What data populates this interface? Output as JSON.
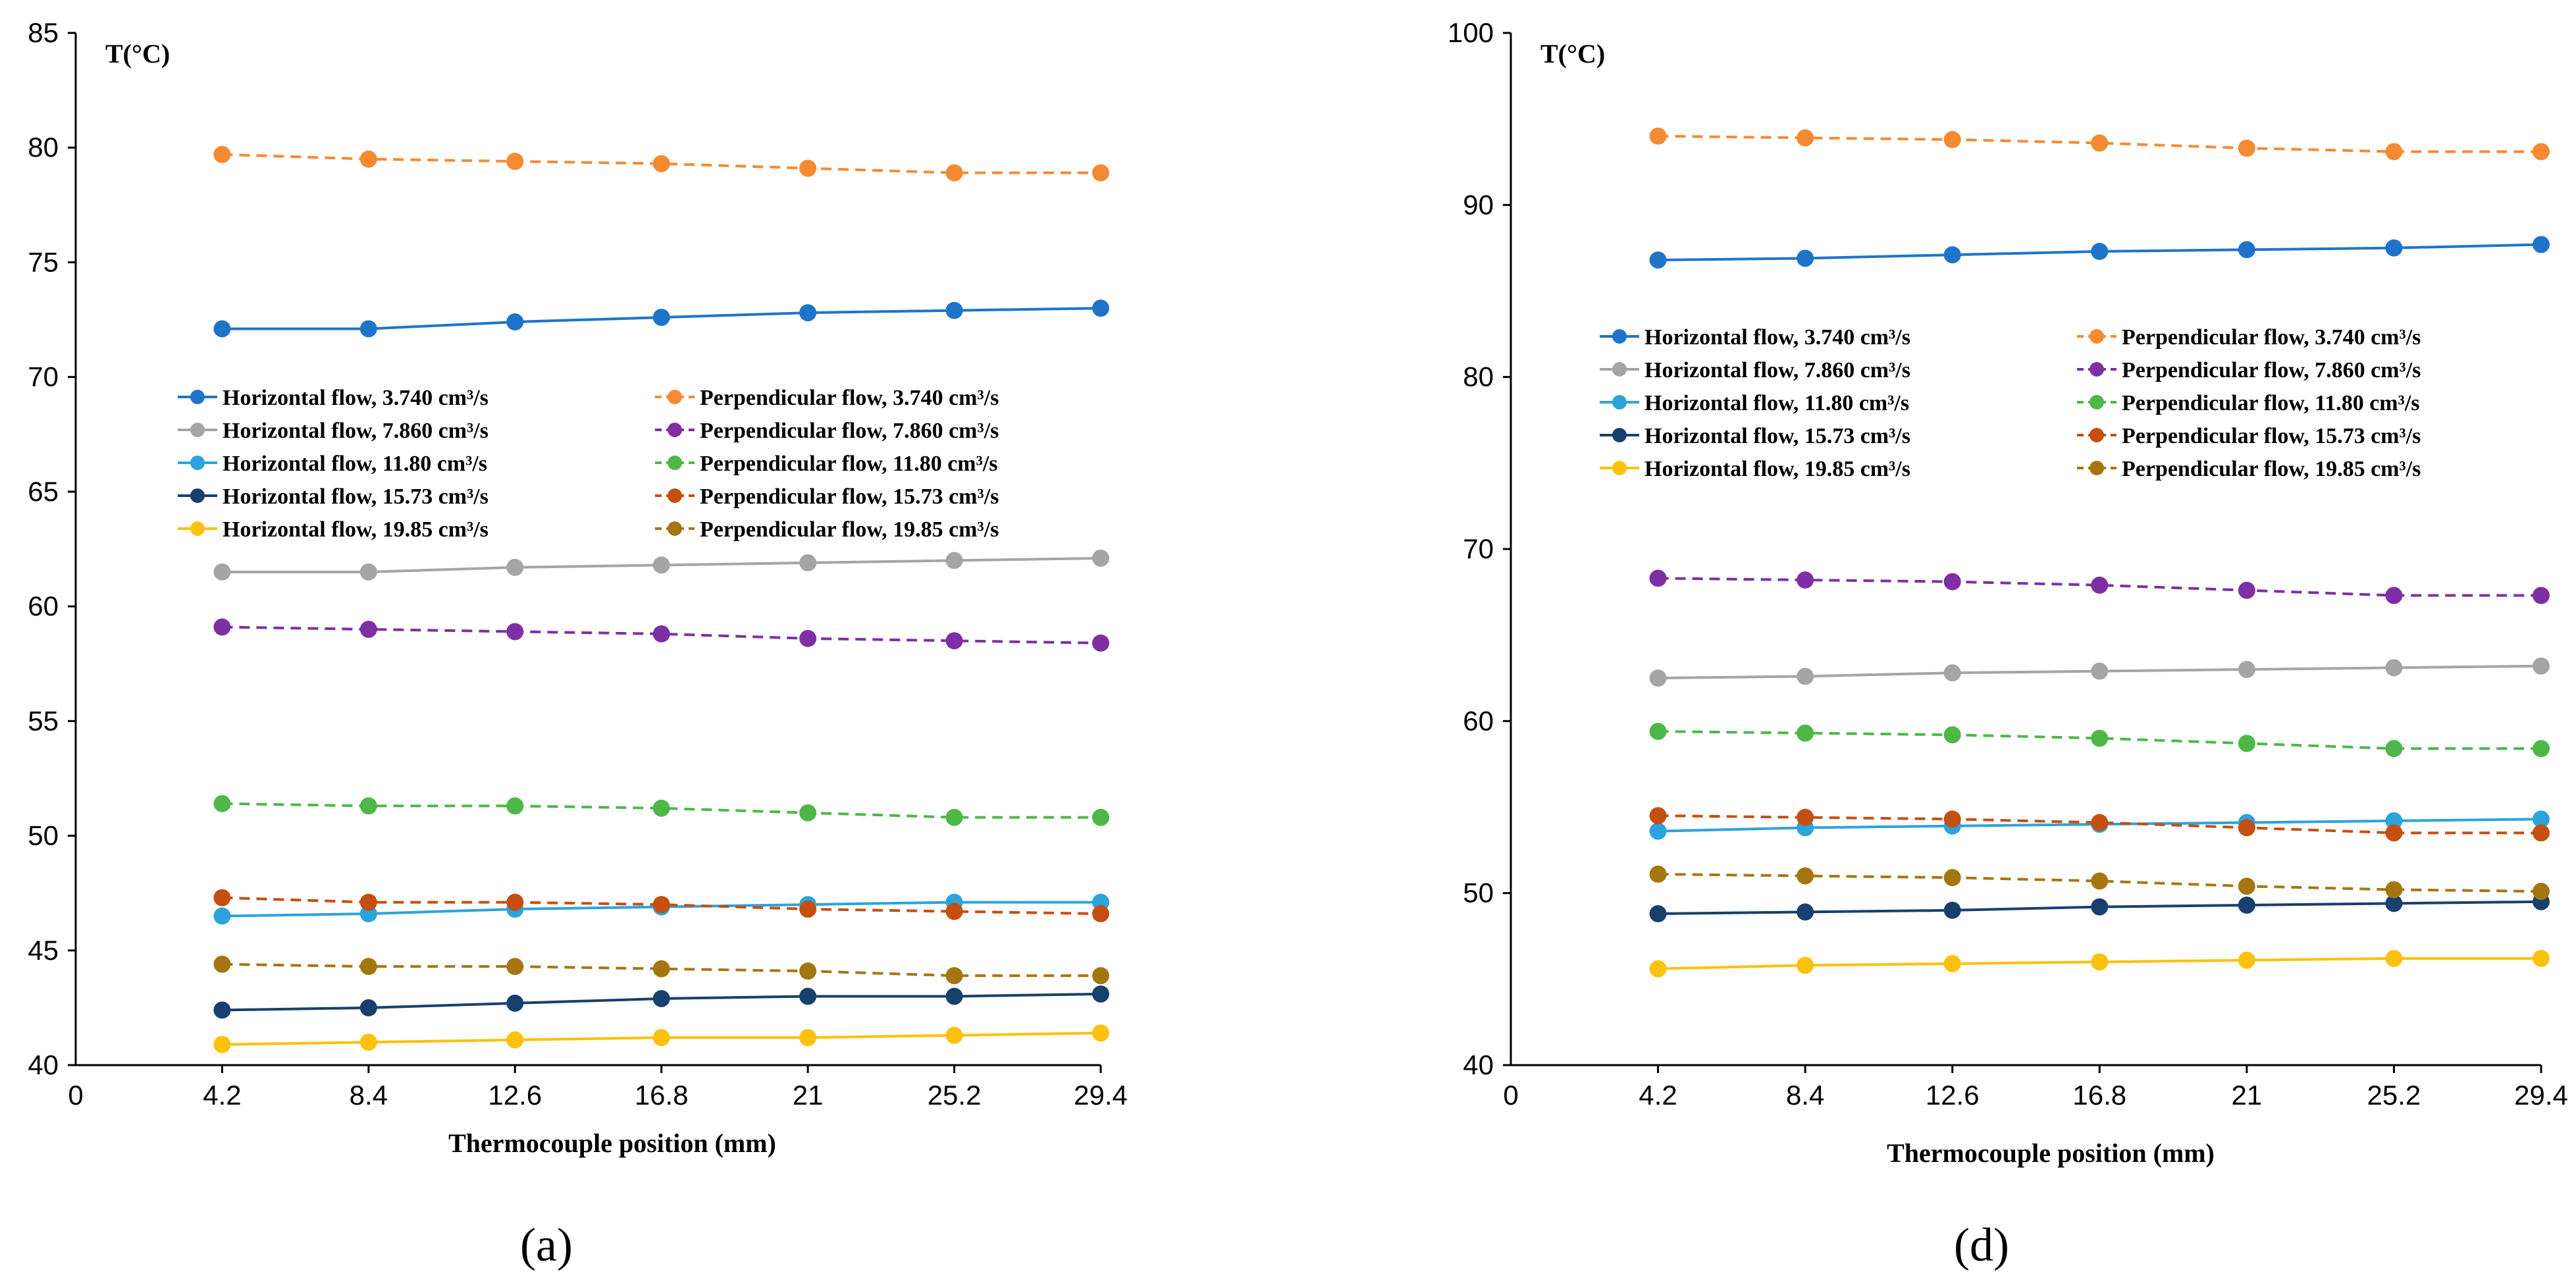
{
  "chart_data": [
    {
      "type": "line",
      "panel_label": "(a)",
      "ylabel": "T(°C)",
      "xlabel": "Thermocouple position (mm)",
      "x_origin_label": "0",
      "ylim": [
        40,
        85
      ],
      "ytick_step": 5,
      "yticks": [
        "40",
        "45",
        "50",
        "55",
        "60",
        "65",
        "70",
        "75",
        "80",
        "85"
      ],
      "categories": [
        "4.2",
        "8.4",
        "12.6",
        "16.8",
        "21",
        "25.2",
        "29.4"
      ],
      "series": [
        {
          "name": "Horizontal flow,  3.740 cm³/s",
          "color": "#1f74c9",
          "dashed": false,
          "values": [
            72.1,
            72.1,
            72.4,
            72.6,
            72.8,
            72.9,
            73.0
          ]
        },
        {
          "name": "Perpendicular flow,  3.740 cm³/s",
          "color": "#f58a32",
          "dashed": true,
          "values": [
            79.7,
            79.5,
            79.4,
            79.3,
            79.1,
            78.9,
            78.9
          ]
        },
        {
          "name": "Horizontal flow,  7.860 cm³/s",
          "color": "#a5a5a5",
          "dashed": false,
          "values": [
            61.5,
            61.5,
            61.7,
            61.8,
            61.9,
            62.0,
            62.1
          ]
        },
        {
          "name": "Perpendicular flow,  7.860 cm³/s",
          "color": "#7e2fa4",
          "dashed": true,
          "values": [
            59.1,
            59.0,
            58.9,
            58.8,
            58.6,
            58.5,
            58.4
          ]
        },
        {
          "name": "Horizontal flow,  11.80 cm³/s",
          "color": "#2ca3dc",
          "dashed": false,
          "values": [
            46.5,
            46.6,
            46.8,
            46.9,
            47.0,
            47.1,
            47.1
          ]
        },
        {
          "name": "Perpendicular flow,  11.80 cm³/s",
          "color": "#4db848",
          "dashed": true,
          "values": [
            51.4,
            51.3,
            51.3,
            51.2,
            51.0,
            50.8,
            50.8
          ]
        },
        {
          "name": "Horizontal flow,  15.73 cm³/s",
          "color": "#17406e",
          "dashed": false,
          "values": [
            42.4,
            42.5,
            42.7,
            42.9,
            43.0,
            43.0,
            43.1
          ]
        },
        {
          "name": "Perpendicular flow,  15.73 cm³/s",
          "color": "#c44f10",
          "dashed": true,
          "values": [
            47.3,
            47.1,
            47.1,
            47.0,
            46.8,
            46.7,
            46.6
          ]
        },
        {
          "name": "Horizontal flow,  19.85 cm³/s",
          "color": "#fcc10d",
          "dashed": false,
          "values": [
            40.9,
            41.0,
            41.1,
            41.2,
            41.2,
            41.3,
            41.4
          ]
        },
        {
          "name": "Perpendicular flow,  19.85 cm³/s",
          "color": "#a57610",
          "dashed": true,
          "values": [
            44.4,
            44.3,
            44.3,
            44.2,
            44.1,
            43.9,
            43.9
          ]
        }
      ]
    },
    {
      "type": "line",
      "panel_label": "(d)",
      "ylabel": "T(°C)",
      "xlabel": "Thermocouple position (mm)",
      "x_origin_label": "0",
      "ylim": [
        40,
        100
      ],
      "ytick_step": 10,
      "yticks": [
        "40",
        "50",
        "60",
        "70",
        "80",
        "90",
        "100"
      ],
      "categories": [
        "4.2",
        "8.4",
        "12.6",
        "16.8",
        "21",
        "25.2",
        "29.4"
      ],
      "series": [
        {
          "name": "Horizontal flow,  3.740 cm³/s",
          "color": "#1f74c9",
          "dashed": false,
          "values": [
            86.8,
            86.9,
            87.1,
            87.3,
            87.4,
            87.5,
            87.7
          ]
        },
        {
          "name": "Perpendicular flow,  3.740 cm³/s",
          "color": "#f58a32",
          "dashed": true,
          "values": [
            94.0,
            93.9,
            93.8,
            93.6,
            93.3,
            93.1,
            93.1
          ]
        },
        {
          "name": "Horizontal flow,  7.860 cm³/s",
          "color": "#a5a5a5",
          "dashed": false,
          "values": [
            62.5,
            62.6,
            62.8,
            62.9,
            63.0,
            63.1,
            63.2
          ]
        },
        {
          "name": "Perpendicular flow,  7.860 cm³/s",
          "color": "#7e2fa4",
          "dashed": true,
          "values": [
            68.3,
            68.2,
            68.1,
            67.9,
            67.6,
            67.3,
            67.3
          ]
        },
        {
          "name": "Horizontal flow,  11.80 cm³/s",
          "color": "#2ca3dc",
          "dashed": false,
          "values": [
            53.6,
            53.8,
            53.9,
            54.0,
            54.1,
            54.2,
            54.3
          ]
        },
        {
          "name": "Perpendicular flow,  11.80 cm³/s",
          "color": "#4db848",
          "dashed": true,
          "values": [
            59.4,
            59.3,
            59.2,
            59.0,
            58.7,
            58.4,
            58.4
          ]
        },
        {
          "name": "Horizontal flow,  15.73 cm³/s",
          "color": "#17406e",
          "dashed": false,
          "values": [
            48.8,
            48.9,
            49.0,
            49.2,
            49.3,
            49.4,
            49.5
          ]
        },
        {
          "name": "Perpendicular flow,  15.73 cm³/s",
          "color": "#c44f10",
          "dashed": true,
          "values": [
            54.5,
            54.4,
            54.3,
            54.1,
            53.8,
            53.5,
            53.5
          ]
        },
        {
          "name": "Horizontal flow,  19.85 cm³/s",
          "color": "#fcc10d",
          "dashed": false,
          "values": [
            45.6,
            45.8,
            45.9,
            46.0,
            46.1,
            46.2,
            46.2
          ]
        },
        {
          "name": "Perpendicular flow,  19.85 cm³/s",
          "color": "#a57610",
          "dashed": true,
          "values": [
            51.1,
            51.0,
            50.9,
            50.7,
            50.4,
            50.2,
            50.1
          ]
        }
      ]
    }
  ]
}
